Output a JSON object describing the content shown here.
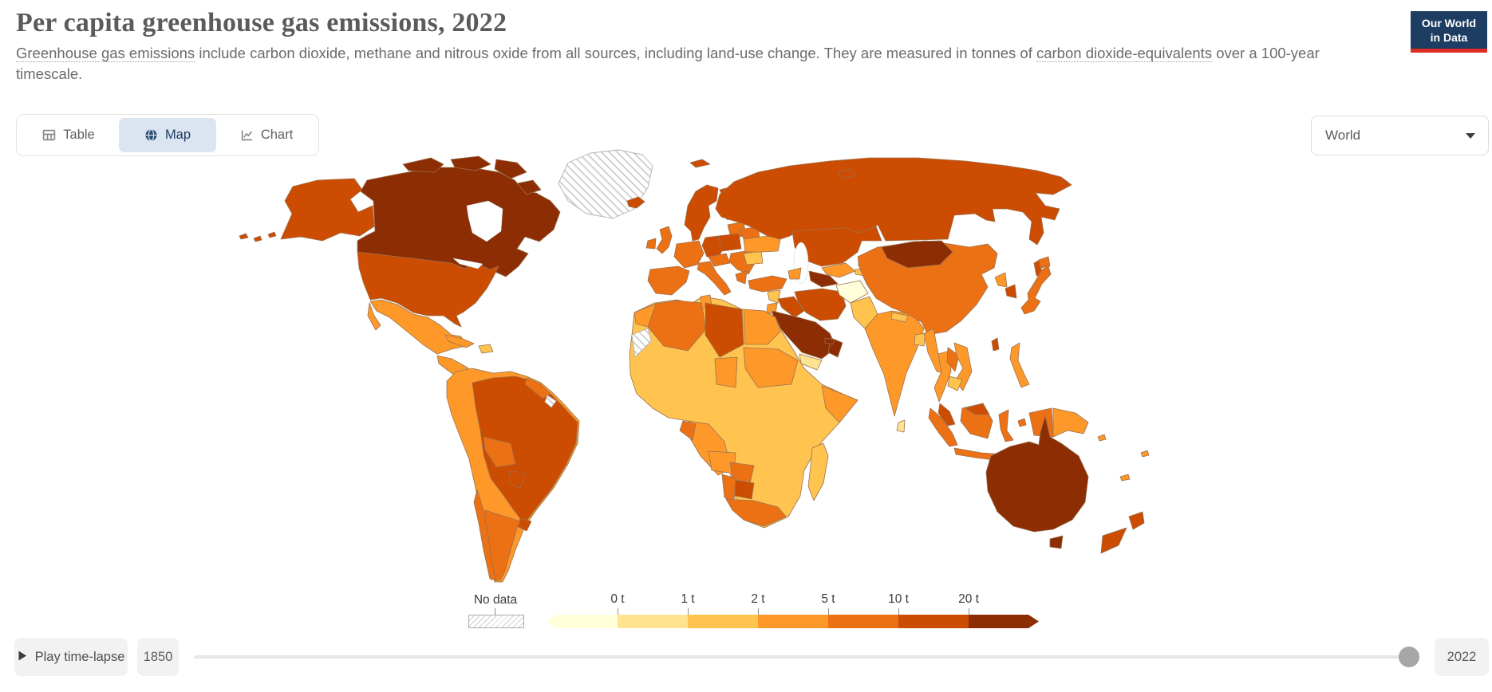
{
  "header": {
    "title": "Per capita greenhouse gas emissions, 2022",
    "subtitle": {
      "link1": "Greenhouse gas emissions",
      "middle": " include carbon dioxide, methane and nitrous oxide from all sources, including land-use change. They are measured in tonnes of ",
      "link2": "carbon dioxide-equivalents",
      "end": " over a 100-year timescale."
    },
    "logo": {
      "line1": "Our World",
      "line2": "in Data",
      "bg": "#1d3d63",
      "accent": "#dc2d22"
    }
  },
  "toolbar": {
    "tabs": [
      {
        "label": "Table",
        "icon": "table-icon",
        "active": false
      },
      {
        "label": "Map",
        "icon": "globe-icon",
        "active": true
      },
      {
        "label": "Chart",
        "icon": "chart-icon",
        "active": false
      }
    ],
    "region_dropdown": {
      "value": "World"
    }
  },
  "legend": {
    "no_data_label": "No data"
  },
  "timeline": {
    "play_label": "Play time-lapse",
    "start_year": "1850",
    "end_year": "2022"
  },
  "colors": {
    "accent_navy": "#1d3d63",
    "logo_red": "#dc2d22",
    "active_tab_bg": "#dbe4f1",
    "control_bg": "#f2f2f2",
    "map_border": "#9b7250",
    "track": "#e6e6e6",
    "handle": "#a6a6a6"
  },
  "chart_data": {
    "type": "heatmap",
    "subtype": "choropleth-world-map",
    "title": "Per capita greenhouse gas emissions, 2022",
    "unit": "tonnes of CO2-equivalents per person (100-year timescale)",
    "year_shown": "2022",
    "timeline_range": [
      "1850",
      "2022"
    ],
    "legend_position": "bottom",
    "legend_thresholds": [
      "0 t",
      "1 t",
      "2 t",
      "5 t",
      "10 t",
      "20 t"
    ],
    "bin_colors": [
      "#ffffd9",
      "#fee391",
      "#fec44f",
      "#fe9929",
      "#ec7014",
      "#cc4c02",
      "#8c2d04"
    ],
    "band_labels": [
      "below 0 t",
      "0-1 t",
      "1-2 t",
      "2-5 t",
      "5-10 t",
      "10-20 t",
      "over 20 t"
    ],
    "no_data": {
      "label": "No data",
      "pattern": "diagonal-hatch"
    },
    "values": {
      "canada": 6,
      "greenland": "nodata",
      "alaska": 5,
      "united-states": 5,
      "mexico": 3,
      "central-america": 3,
      "cuba": 3,
      "hispaniola": 2,
      "andean-south-america": 3,
      "guyana-suriname": 4,
      "french-guiana": "nodata",
      "brazil": 5,
      "bolivia": 4,
      "paraguay": 5,
      "uruguay": 5,
      "argentina": 4,
      "chile": 4,
      "iceland": 5,
      "united-kingdom": 4,
      "ireland": 4,
      "norway-sweden": 5,
      "finland": 5,
      "baltics": 4,
      "poland": 5,
      "germany": 5,
      "central-europe": 4,
      "france": 4,
      "iberia": 4,
      "italy": 4,
      "balkans": 4,
      "greece": 4,
      "romania": 2,
      "ukraine": 3,
      "belarus": 4,
      "russia": 5,
      "svalbard": 5,
      "kazakhstan": 5,
      "uzbekistan": 3,
      "turkmenistan": 6,
      "kyrgyzstan": 2,
      "tajikistan": 2,
      "turkey": 4,
      "caucasus": 3,
      "syria": 2,
      "iraq": 5,
      "iran": 5,
      "saudi-arabia": 6,
      "yemen": 1,
      "oman": 6,
      "uae": 6,
      "jordan-israel": 3,
      "morocco": 3,
      "western-sahara": "nodata",
      "algeria": 4,
      "tunisia": 3,
      "libya": 5,
      "egypt": 3,
      "sahel-west-africa": 2,
      "chad": 3,
      "sudan": 3,
      "central-africa": 3,
      "congo-gabon": 4,
      "somalia": 3,
      "angola": 3,
      "zambia-zimbabwe": 4,
      "botswana": 5,
      "namibia": 4,
      "south-africa": 4,
      "madagascar": 2,
      "afghanistan": 0,
      "pakistan": 2,
      "india": 3,
      "nepal": 2,
      "bangladesh": 2,
      "sri-lanka": 1,
      "myanmar": 3,
      "thailand": 3,
      "laos": 4,
      "vietnam": 3,
      "cambodia": 2,
      "malaysia": 5,
      "china": 4,
      "mongolia": 6,
      "taiwan": 5,
      "north-korea": 3,
      "south-korea": 5,
      "japan": 4,
      "indonesia": 4,
      "philippines": 3,
      "papua-indonesia": 4,
      "papua-new-guinea": 3,
      "pacific-islands": 3,
      "australia": 6,
      "new-zealand": 5
    }
  }
}
